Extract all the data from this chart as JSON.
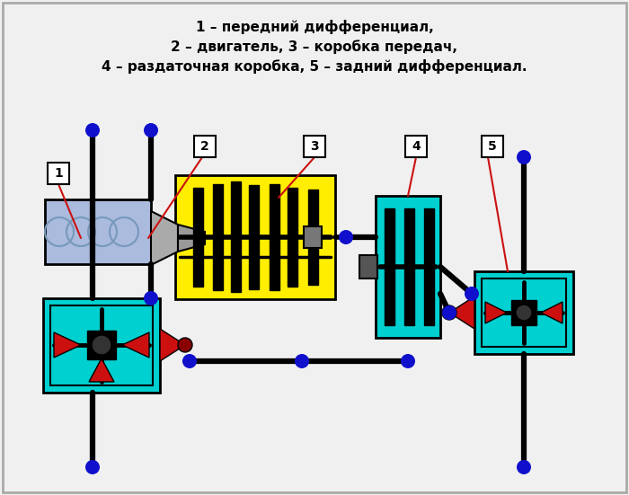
{
  "title_line1": "1 – передний дифференциал,",
  "title_line2": "2 – двигатель, 3 – коробка передач,",
  "title_line3": "4 – раздаточная коробка, 5 – задний дифференциал.",
  "bg_color": "#f0f0f0",
  "cyan": "#00d0d0",
  "yellow": "#ffee00",
  "blue_dot": "#1010cc",
  "black": "#000000",
  "red": "#cc1010",
  "light_blue": "#aabbdd",
  "grey": "#aaaaaa",
  "dark_grey": "#555555"
}
